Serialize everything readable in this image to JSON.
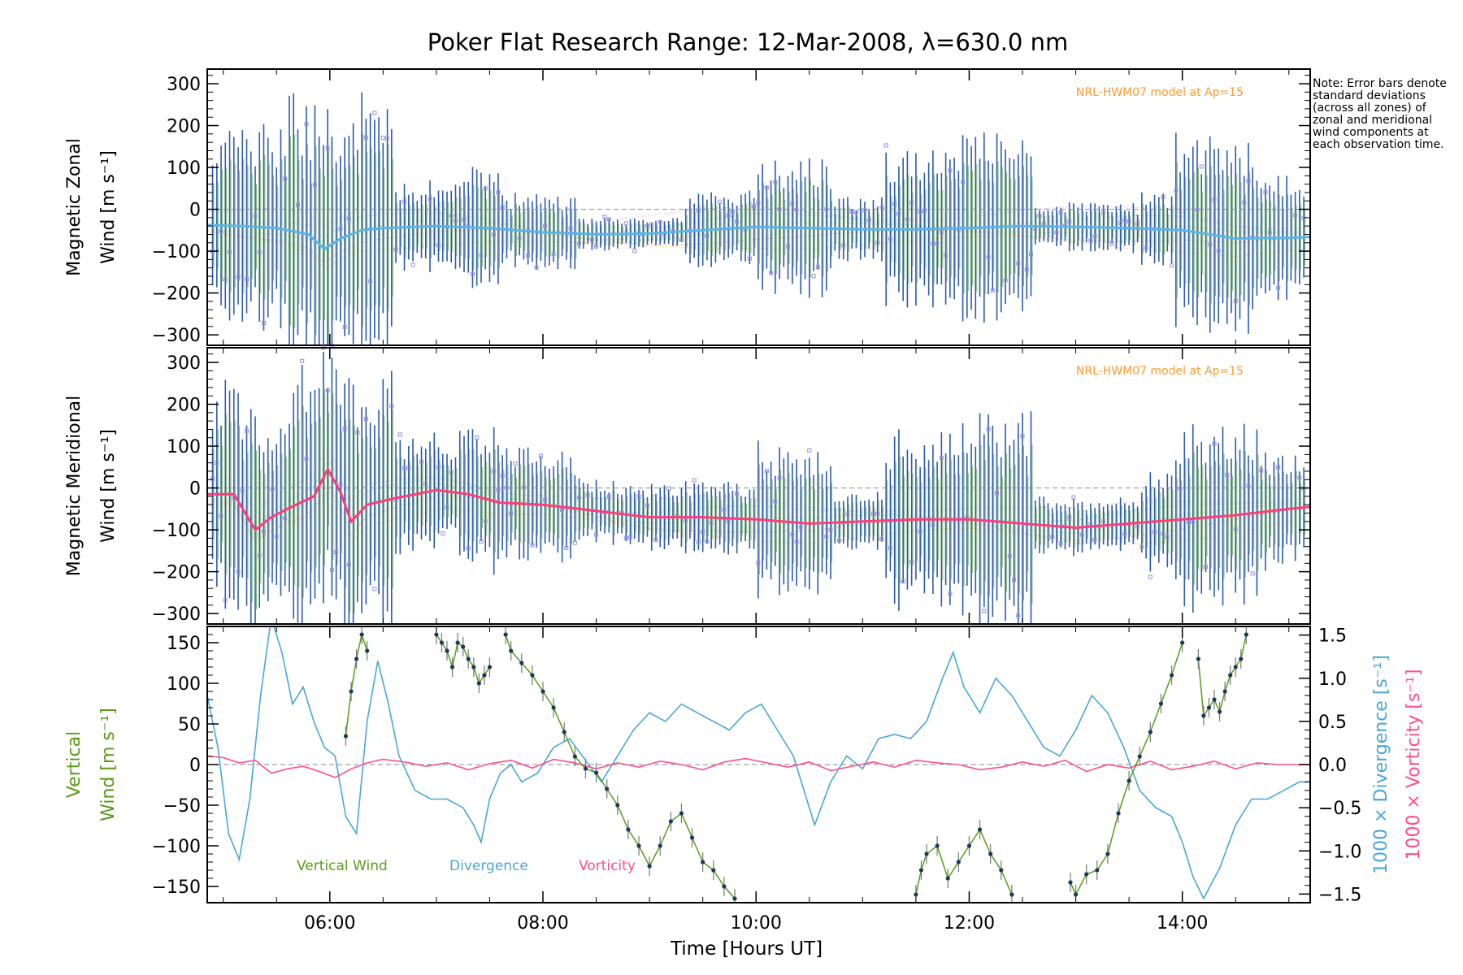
{
  "title": "Poker Flat Research Range: 12-Mar-2008, λ=630.0 nm",
  "note": "Note: Error bars denote standard deviations (across all zones) of zonal and meridional wind components at each observation time.",
  "colors": {
    "zonal_mean": "#3a6fdc",
    "zonal_mean_light": "#5ab4e6",
    "meridional_mean": "#ff3d78",
    "vertical": "#5a9a1a",
    "divergence": "#4aa6d8",
    "vorticity": "#ff4f8a",
    "model": "#ff9a2a",
    "scatter": "#9a8ee0",
    "errorbar": "#2c5aa8",
    "ref_line": "#888888"
  },
  "chart_data": [
    {
      "type": "scatter",
      "panel": "zonal",
      "xlabel": "",
      "ylabel_line1": "Magnetic Zonal",
      "ylabel_line2": "Wind",
      "ylabel_unit": "[m s⁻¹]",
      "ylim": [
        -325,
        335
      ],
      "xlim": [
        4.85,
        15.2
      ],
      "yticks": [
        -300,
        -200,
        -100,
        0,
        100,
        200,
        300
      ],
      "yticklabels": [
        "−300",
        "−200",
        "−100",
        "0",
        "100",
        "200",
        "300"
      ],
      "annotation": "NRL-HWM07 model at Ap=15",
      "mean_wind": {
        "x": [
          4.85,
          5.2,
          5.5,
          5.8,
          5.95,
          6.1,
          6.3,
          6.5,
          7.0,
          7.5,
          8.0,
          8.5,
          9.0,
          9.5,
          10.0,
          10.5,
          11.0,
          11.5,
          12.0,
          12.5,
          13.0,
          13.5,
          14.0,
          14.5,
          15.0,
          15.2
        ],
        "y": [
          -38,
          -40,
          -45,
          -60,
          -95,
          -70,
          -50,
          -45,
          -40,
          -45,
          -55,
          -60,
          -58,
          -50,
          -42,
          -45,
          -48,
          -48,
          -45,
          -40,
          -42,
          -45,
          -50,
          -70,
          -68,
          -66
        ]
      },
      "series": [
        {
          "name": "Scatter amplitude",
          "segments": [
            [
              4.85,
              5.6,
              260
            ],
            [
              5.6,
              6.6,
              330
            ],
            [
              6.6,
              7.2,
              110
            ],
            [
              7.2,
              7.6,
              150
            ],
            [
              7.6,
              8.3,
              90
            ],
            [
              8.3,
              9.3,
              40
            ],
            [
              9.3,
              10.0,
              90
            ],
            [
              10.0,
              10.7,
              170
            ],
            [
              10.7,
              11.2,
              80
            ],
            [
              11.2,
              11.9,
              190
            ],
            [
              11.9,
              12.6,
              230
            ],
            [
              12.6,
              13.6,
              60
            ],
            [
              13.6,
              13.9,
              90
            ],
            [
              13.9,
              14.7,
              240
            ],
            [
              14.7,
              15.2,
              150
            ]
          ]
        }
      ]
    },
    {
      "type": "scatter",
      "panel": "meridional",
      "xlabel": "",
      "ylabel_line1": "Magnetic Meridional",
      "ylabel_line2": "Wind",
      "ylabel_unit": "[m s⁻¹]",
      "ylim": [
        -325,
        335
      ],
      "xlim": [
        4.85,
        15.2
      ],
      "yticks": [
        -300,
        -200,
        -100,
        0,
        100,
        200,
        300
      ],
      "yticklabels": [
        "−300",
        "−200",
        "−100",
        "0",
        "100",
        "200",
        "300"
      ],
      "annotation": "NRL-HWM07 model at Ap=15",
      "mean_wind": {
        "x": [
          4.85,
          5.1,
          5.3,
          5.45,
          5.6,
          5.85,
          5.98,
          6.1,
          6.2,
          6.35,
          6.6,
          7.0,
          7.3,
          7.6,
          8.0,
          8.5,
          9.0,
          9.5,
          10.0,
          10.5,
          11.0,
          11.5,
          12.0,
          12.5,
          13.0,
          13.5,
          14.0,
          14.5,
          15.0,
          15.2
        ],
        "y": [
          -15,
          -15,
          -100,
          -70,
          -50,
          -20,
          45,
          -10,
          -80,
          -40,
          -25,
          -5,
          -15,
          -35,
          -40,
          -55,
          -70,
          -70,
          -75,
          -85,
          -80,
          -75,
          -75,
          -85,
          -95,
          -85,
          -75,
          -65,
          -50,
          -45
        ]
      },
      "series": [
        {
          "name": "Scatter amplitude",
          "segments": [
            [
              4.85,
              5.6,
              280
            ],
            [
              5.6,
              6.6,
              330
            ],
            [
              6.6,
              7.2,
              140
            ],
            [
              7.2,
              7.6,
              180
            ],
            [
              7.6,
              8.3,
              140
            ],
            [
              8.3,
              9.3,
              80
            ],
            [
              9.3,
              10.0,
              90
            ],
            [
              10.0,
              10.7,
              190
            ],
            [
              10.7,
              11.2,
              80
            ],
            [
              11.2,
              11.9,
              220
            ],
            [
              11.9,
              12.6,
              280
            ],
            [
              12.6,
              13.6,
              70
            ],
            [
              13.6,
              13.9,
              120
            ],
            [
              13.9,
              14.7,
              230
            ],
            [
              14.7,
              15.2,
              150
            ]
          ]
        }
      ]
    },
    {
      "type": "line",
      "panel": "vertical",
      "xlabel": "Time [Hours UT]",
      "xlim": [
        4.85,
        15.2
      ],
      "xticks": [
        6,
        8,
        10,
        12,
        14
      ],
      "xticklabels": [
        "06:00",
        "08:00",
        "10:00",
        "12:00",
        "14:00"
      ],
      "ylabel_line1": "Vertical",
      "ylabel_line2": "Wind",
      "ylabel_unit": "[m s⁻¹]",
      "ylim": [
        -170,
        170
      ],
      "yticks": [
        -150,
        -100,
        -50,
        0,
        50,
        100,
        150
      ],
      "yticklabels": [
        "−150",
        "−100",
        "−50",
        "0",
        "50",
        "100",
        "150"
      ],
      "y2label_div": "1000 × Divergence",
      "y2label_vor": "1000 × Vorticity",
      "y2label_unit": "[s⁻¹]",
      "y2lim": [
        -1.6,
        1.6
      ],
      "y2ticks": [
        -1.5,
        -1.0,
        -0.5,
        0.0,
        0.5,
        1.0,
        1.5
      ],
      "y2ticklabels": [
        "−1.5",
        "−1.0",
        "−0.5",
        "0.0",
        "0.5",
        "1.0",
        "1.5"
      ],
      "legend": [
        "Vertical Wind",
        "Divergence",
        "Vorticity"
      ],
      "series": [
        {
          "name": "Vertical Wind",
          "segments": [
            {
              "x": [
                6.15,
                6.2,
                6.25,
                6.3,
                6.35
              ],
              "y": [
                35,
                90,
                130,
                160,
                140
              ]
            },
            {
              "x": [
                7.0,
                7.05,
                7.1,
                7.15,
                7.2,
                7.25,
                7.3,
                7.35,
                7.4,
                7.45,
                7.5
              ],
              "y": [
                160,
                150,
                140,
                120,
                150,
                145,
                130,
                120,
                100,
                110,
                120
              ]
            },
            {
              "x": [
                7.65,
                7.7,
                7.8,
                7.9,
                8.0,
                8.1,
                8.2,
                8.3,
                8.4,
                8.5,
                8.6,
                8.7,
                8.8,
                8.9,
                9.0,
                9.1,
                9.2,
                9.3,
                9.4,
                9.5,
                9.6,
                9.7,
                9.8
              ],
              "y": [
                160,
                140,
                125,
                110,
                90,
                70,
                40,
                10,
                -5,
                -10,
                -30,
                -50,
                -80,
                -100,
                -125,
                -100,
                -70,
                -60,
                -90,
                -120,
                -130,
                -150,
                -165
              ]
            },
            {
              "x": [
                11.5,
                11.55,
                11.6,
                11.7,
                11.8,
                11.9,
                12.0,
                12.1,
                12.2,
                12.3,
                12.4
              ],
              "y": [
                -160,
                -130,
                -110,
                -100,
                -140,
                -120,
                -100,
                -80,
                -110,
                -130,
                -160
              ]
            },
            {
              "x": [
                12.95,
                13.0,
                13.1,
                13.2,
                13.3,
                13.4,
                13.5,
                13.6,
                13.7,
                13.8,
                13.9,
                14.0
              ],
              "y": [
                -145,
                -160,
                -135,
                -130,
                -110,
                -60,
                -20,
                10,
                40,
                75,
                110,
                150
              ]
            },
            {
              "x": [
                14.15,
                14.2,
                14.25,
                14.3,
                14.35,
                14.4,
                14.45,
                14.5,
                14.55,
                14.6
              ],
              "y": [
                130,
                60,
                70,
                80,
                65,
                90,
                110,
                120,
                130,
                160
              ]
            }
          ]
        },
        {
          "name": "Divergence",
          "x": [
            4.85,
            4.95,
            5.05,
            5.15,
            5.25,
            5.35,
            5.45,
            5.55,
            5.65,
            5.75,
            5.85,
            5.95,
            6.05,
            6.15,
            6.25,
            6.35,
            6.45,
            6.55,
            6.65,
            6.8,
            6.95,
            7.1,
            7.25,
            7.35,
            7.42,
            7.5,
            7.6,
            7.7,
            7.8,
            7.95,
            8.1,
            8.25,
            8.4,
            8.55,
            8.7,
            8.85,
            9.0,
            9.15,
            9.3,
            9.45,
            9.6,
            9.75,
            9.9,
            10.05,
            10.2,
            10.35,
            10.45,
            10.55,
            10.7,
            10.85,
            11.0,
            11.15,
            11.3,
            11.45,
            11.6,
            11.75,
            11.85,
            11.95,
            12.1,
            12.25,
            12.4,
            12.55,
            12.7,
            12.85,
            13.0,
            13.15,
            13.3,
            13.45,
            13.6,
            13.75,
            13.9,
            14.0,
            14.1,
            14.2,
            14.35,
            14.5,
            14.65,
            14.8,
            14.95,
            15.1,
            15.2
          ],
          "y": [
            0.8,
            0.2,
            -0.8,
            -1.1,
            -0.4,
            0.8,
            1.7,
            1.3,
            0.7,
            0.9,
            0.5,
            0.2,
            0.1,
            -0.6,
            -0.8,
            0.5,
            1.2,
            0.7,
            0.1,
            -0.3,
            -0.4,
            -0.4,
            -0.5,
            -0.7,
            -0.9,
            -0.4,
            -0.1,
            0.0,
            -0.2,
            -0.1,
            0.2,
            0.3,
            0.05,
            -0.2,
            0.1,
            0.4,
            0.6,
            0.5,
            0.7,
            0.6,
            0.5,
            0.4,
            0.6,
            0.7,
            0.4,
            0.1,
            -0.3,
            -0.7,
            -0.2,
            0.1,
            -0.05,
            0.3,
            0.35,
            0.3,
            0.5,
            1.0,
            1.3,
            0.9,
            0.6,
            1.0,
            0.8,
            0.5,
            0.2,
            0.1,
            0.4,
            0.8,
            0.6,
            0.2,
            -0.3,
            -0.5,
            -0.6,
            -0.9,
            -1.3,
            -1.55,
            -1.2,
            -0.7,
            -0.4,
            -0.4,
            -0.3,
            -0.2,
            -0.2
          ]
        },
        {
          "name": "Vorticity",
          "x": [
            4.85,
            5.0,
            5.15,
            5.3,
            5.45,
            5.6,
            5.75,
            5.9,
            6.05,
            6.2,
            6.35,
            6.5,
            6.7,
            6.9,
            7.1,
            7.3,
            7.5,
            7.7,
            7.9,
            8.1,
            8.3,
            8.5,
            8.7,
            8.9,
            9.1,
            9.3,
            9.5,
            9.7,
            9.9,
            10.1,
            10.3,
            10.5,
            10.7,
            10.9,
            11.1,
            11.3,
            11.5,
            11.7,
            11.9,
            12.1,
            12.3,
            12.5,
            12.7,
            12.9,
            13.1,
            13.3,
            13.5,
            13.7,
            13.9,
            14.1,
            14.3,
            14.5,
            14.7,
            14.9,
            15.1,
            15.2
          ],
          "y": [
            0.1,
            0.08,
            0.02,
            0.05,
            -0.1,
            -0.05,
            -0.02,
            -0.08,
            -0.15,
            -0.05,
            0.02,
            0.06,
            0.03,
            -0.02,
            0.02,
            -0.06,
            0.01,
            0.05,
            -0.04,
            0.06,
            0.02,
            -0.05,
            0.02,
            -0.03,
            0.04,
            0.0,
            -0.06,
            0.03,
            0.07,
            0.02,
            -0.03,
            0.03,
            -0.07,
            -0.02,
            0.03,
            -0.03,
            0.05,
            0.02,
            0.0,
            -0.06,
            -0.03,
            0.03,
            -0.02,
            0.05,
            -0.08,
            0.0,
            -0.04,
            0.04,
            -0.06,
            -0.02,
            0.04,
            -0.05,
            0.02,
            0.0,
            0.0,
            0.0
          ]
        }
      ]
    }
  ]
}
